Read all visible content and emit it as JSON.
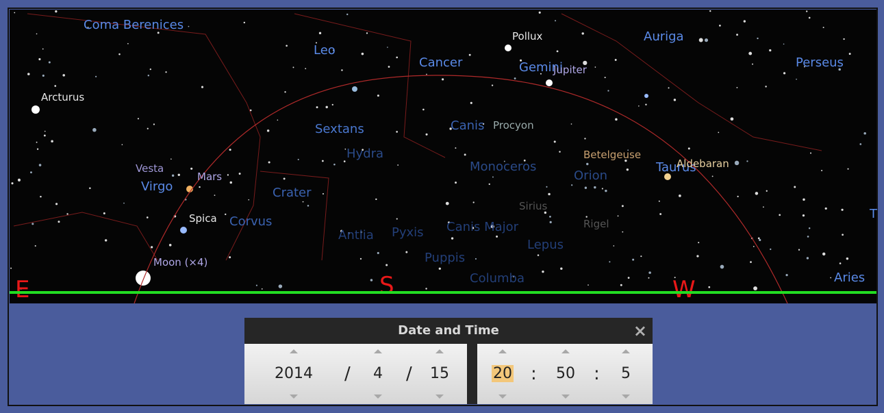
{
  "sky": {
    "constellations": [
      "Coma Berenices",
      "Leo",
      "Cancer",
      "Gemini",
      "Auriga",
      "Perseus",
      "Sextans",
      "Hydra",
      "Canis",
      "Monoceros",
      "Orion",
      "Taurus",
      "Virgo",
      "Crater",
      "Corvus",
      "Antlia",
      "Pyxis",
      "Canis Major",
      "Puppis",
      "Lepus",
      "Columba",
      "Aries",
      "T"
    ],
    "stars": [
      "Pollux",
      "Arcturus",
      "Spica",
      "Procyon",
      "Betelgeuse",
      "Aldebaran",
      "Sirius",
      "Rigel"
    ],
    "planets": [
      "Jupiter",
      "Vesta",
      "Mars",
      "Moon (×4)"
    ],
    "cardinals": [
      "E",
      "S",
      "W"
    ]
  },
  "dialog": {
    "title": "Date and Time",
    "close": "×",
    "date": {
      "year": 2014,
      "month": 4,
      "day": 15,
      "separator": "/"
    },
    "time": {
      "hour": 20,
      "minute": 50,
      "second": 5,
      "separator": ":"
    }
  }
}
